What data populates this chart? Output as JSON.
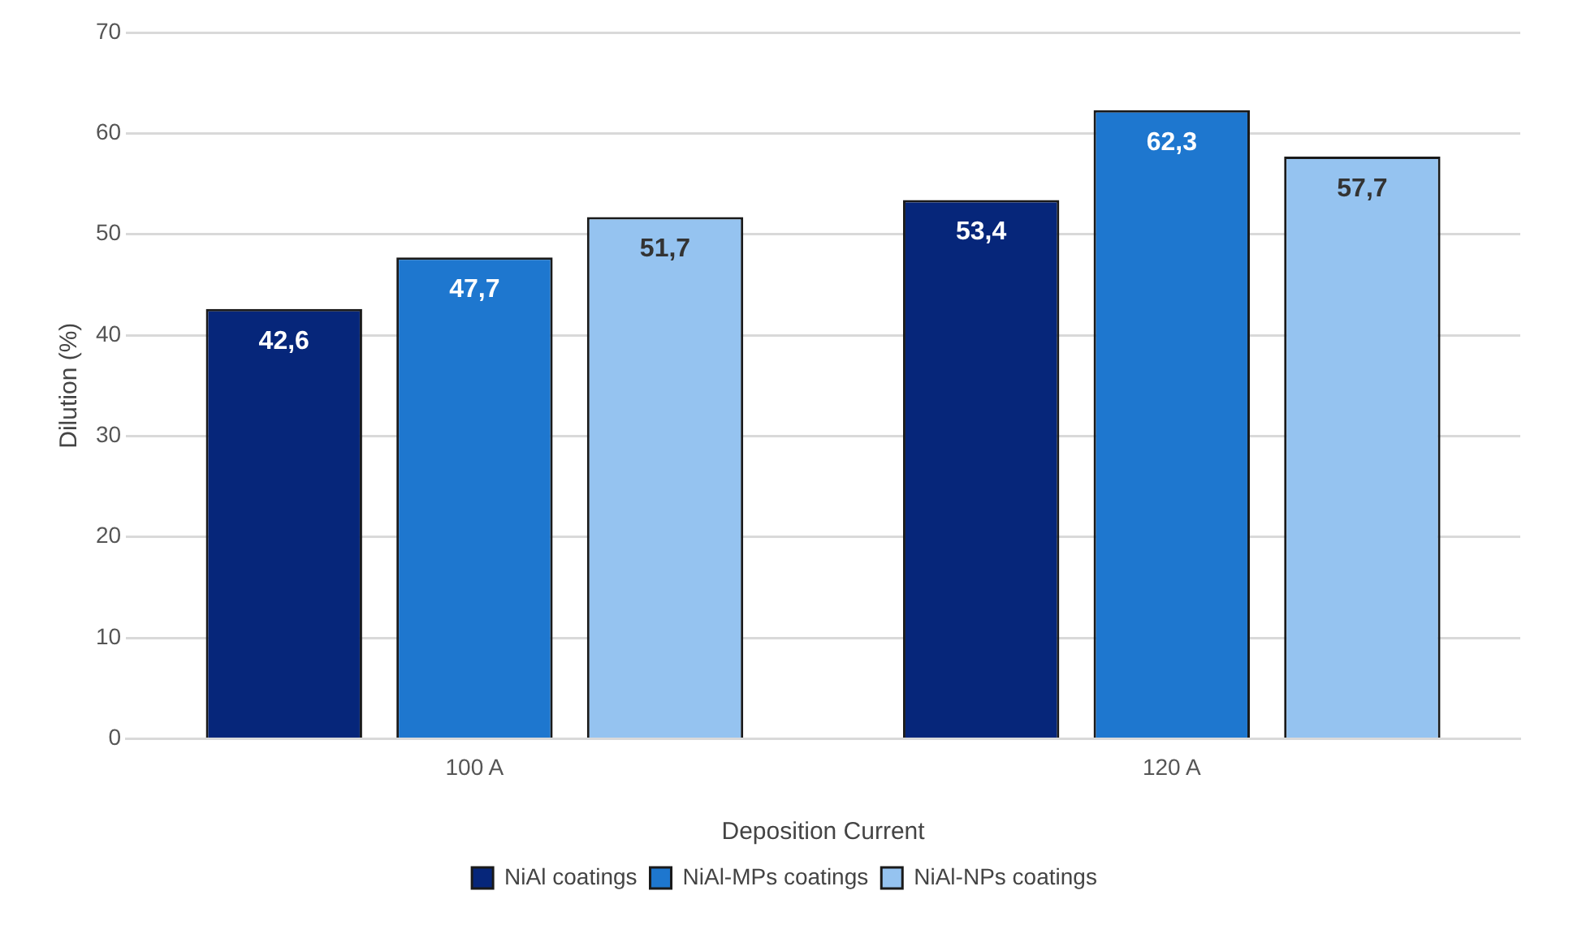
{
  "chart_data": {
    "type": "bar",
    "xlabel": "Deposition Current",
    "ylabel": "Dilution (%)",
    "categories": [
      "100 A",
      "120 A"
    ],
    "series": [
      {
        "name": "NiAl coatings",
        "color": "#06267a",
        "values": [
          42.6,
          53.4
        ],
        "value_labels": [
          "42,6",
          "53,4"
        ]
      },
      {
        "name": "NiAl-MPs coatings",
        "color": "#1e77cf",
        "values": [
          47.7,
          62.3
        ],
        "value_labels": [
          "47,7",
          "62,3"
        ]
      },
      {
        "name": "NiAl-NPs coatings",
        "color": "#95c3f0",
        "values": [
          51.7,
          57.7
        ],
        "value_labels": [
          "51,7",
          "57,7"
        ]
      }
    ],
    "ylim": [
      0,
      70
    ],
    "yticks": [
      0,
      10,
      20,
      30,
      40,
      50,
      60,
      70
    ],
    "grid": "y",
    "legend": "bottom"
  }
}
